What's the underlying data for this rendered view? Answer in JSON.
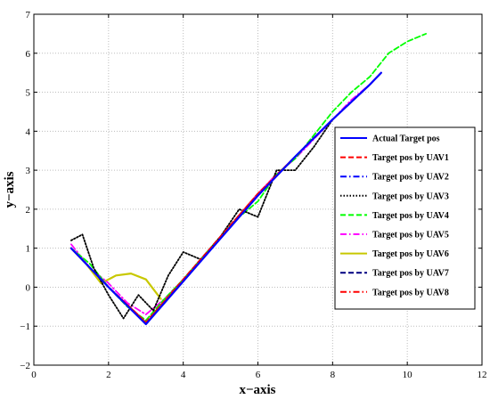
{
  "chart_data": {
    "type": "line",
    "title": "",
    "xlabel": "x−axis",
    "ylabel": "y−axis",
    "xlim": [
      0,
      12
    ],
    "ylim": [
      -2,
      7
    ],
    "xticks": [
      "0",
      "2",
      "4",
      "6",
      "8",
      "10",
      "12"
    ],
    "yticks": [
      "−2",
      "−1",
      "0",
      "1",
      "2",
      "3",
      "4",
      "5",
      "6",
      "7"
    ],
    "grid": true,
    "legend_position": "right",
    "series": [
      {
        "name": "Actual Target pos",
        "color": "#0000ff",
        "style": "solid",
        "x": [
          1.0,
          2.0,
          3.0,
          4.0,
          5.0,
          6.0,
          7.0,
          8.0,
          9.0,
          9.3
        ],
        "y": [
          1.0,
          0.0,
          -0.95,
          0.15,
          1.25,
          2.35,
          3.35,
          4.3,
          5.2,
          5.5
        ]
      },
      {
        "name": "Target pos by UAV1",
        "color": "#ff0000",
        "style": "dashed",
        "x": [
          1.0,
          2.0,
          3.0,
          4.0,
          5.0,
          6.0,
          7.0,
          8.0,
          9.0,
          9.3
        ],
        "y": [
          1.0,
          0.0,
          -0.9,
          0.2,
          1.3,
          2.4,
          3.35,
          4.3,
          5.2,
          5.5
        ]
      },
      {
        "name": "Target pos by UAV2",
        "color": "#0000ff",
        "style": "dashdot",
        "x": [
          1.0,
          2.0,
          3.0,
          4.0,
          5.0,
          6.0,
          7.0,
          8.0,
          9.0,
          9.3
        ],
        "y": [
          1.0,
          0.0,
          -0.95,
          0.15,
          1.25,
          2.35,
          3.35,
          4.3,
          5.2,
          5.5
        ]
      },
      {
        "name": "Target pos by UAV3",
        "color": "#000000",
        "style": "dotted",
        "x": [
          1.0,
          1.3,
          1.6,
          2.0,
          2.4,
          2.8,
          3.2,
          3.6,
          4.0,
          4.5,
          5.0,
          5.5,
          6.0,
          6.5,
          7.0,
          7.5,
          8.0
        ],
        "y": [
          1.2,
          1.35,
          0.5,
          -0.2,
          -0.8,
          -0.2,
          -0.6,
          0.3,
          0.9,
          0.7,
          1.3,
          2.0,
          1.8,
          3.0,
          3.0,
          3.6,
          4.3
        ]
      },
      {
        "name": "Target pos by UAV4",
        "color": "#00ff00",
        "style": "dashed",
        "x": [
          1.0,
          1.5,
          2.0,
          2.5,
          3.0,
          3.5,
          4.0,
          4.5,
          5.0,
          5.5,
          6.0,
          6.5,
          7.0,
          7.5,
          8.0,
          8.5,
          9.0,
          9.5,
          10.0,
          10.5
        ],
        "y": [
          1.0,
          0.6,
          0.0,
          -0.5,
          -0.85,
          -0.3,
          0.2,
          0.75,
          1.3,
          1.8,
          2.2,
          2.9,
          3.3,
          3.9,
          4.5,
          5.0,
          5.4,
          6.0,
          6.3,
          6.5
        ]
      },
      {
        "name": "Target pos by UAV5",
        "color": "#ff00ff",
        "style": "dashdot",
        "x": [
          1.0,
          1.5,
          2.0,
          2.5,
          3.0,
          3.5,
          4.0,
          4.5,
          5.0,
          5.5,
          6.0,
          6.5,
          7.0,
          7.5,
          8.0,
          8.5,
          9.0,
          9.2
        ],
        "y": [
          1.1,
          0.5,
          0.1,
          -0.4,
          -0.7,
          -0.3,
          0.2,
          0.7,
          1.3,
          1.8,
          2.4,
          2.9,
          3.3,
          3.8,
          4.3,
          4.8,
          5.2,
          5.4
        ]
      },
      {
        "name": "Target pos by UAV6",
        "color": "#c8c800",
        "style": "solid",
        "x": [
          1.0,
          1.4,
          1.8,
          2.2,
          2.6,
          3.0,
          3.4
        ],
        "y": [
          1.0,
          0.6,
          0.1,
          0.3,
          0.35,
          0.2,
          -0.3
        ]
      },
      {
        "name": "Target pos by UAV7",
        "color": "#000080",
        "style": "dashed",
        "x": [
          1.0,
          2.0,
          3.0,
          4.0,
          5.0,
          6.0,
          7.0,
          8.0,
          9.0,
          9.3
        ],
        "y": [
          1.0,
          0.0,
          -0.9,
          0.2,
          1.3,
          2.35,
          3.35,
          4.3,
          5.2,
          5.5
        ]
      },
      {
        "name": "Target pos by UAV8",
        "color": "#ff0000",
        "style": "dashdot",
        "x": [
          1.0,
          2.0,
          3.0,
          4.0,
          5.0,
          6.0,
          7.0,
          8.0,
          9.0,
          9.3
        ],
        "y": [
          1.0,
          0.0,
          -0.9,
          0.2,
          1.3,
          2.4,
          3.35,
          4.3,
          5.2,
          5.5
        ]
      }
    ]
  }
}
